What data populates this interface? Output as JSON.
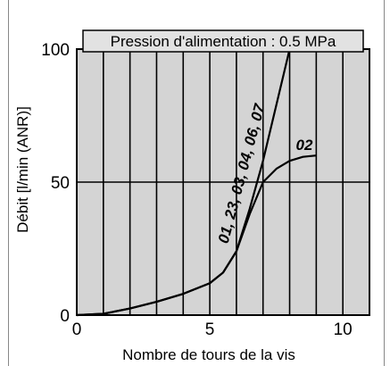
{
  "chart_data": {
    "type": "line",
    "title": "Pression d'alimentation : 0.5 MPa",
    "xlabel": "Nombre de tours de la vis",
    "ylabel": "Débit [l/min (ANR)]",
    "xlim": [
      0,
      11
    ],
    "ylim": [
      0,
      100
    ],
    "x_ticks": [
      "0",
      "5",
      "10"
    ],
    "y_ticks": [
      "0",
      "50",
      "100"
    ],
    "grid": true,
    "background": "#d4d4d4",
    "series": [
      {
        "name": "01, 23, 03, 04, 06, 07",
        "x": [
          0,
          1,
          2,
          3,
          4,
          5,
          5.5,
          6,
          6.5,
          7,
          7.5,
          8
        ],
        "y": [
          0,
          0.5,
          2.5,
          5,
          8,
          12,
          16,
          24,
          40,
          58,
          79,
          100
        ]
      },
      {
        "name": "02",
        "x": [
          0,
          1,
          2,
          3,
          4,
          5,
          5.5,
          6,
          6.5,
          7,
          7.5,
          8,
          8.5,
          9
        ],
        "y": [
          0,
          0.5,
          2.5,
          5,
          8,
          12,
          16,
          24,
          38,
          50,
          55,
          58,
          59.5,
          60
        ]
      }
    ]
  }
}
